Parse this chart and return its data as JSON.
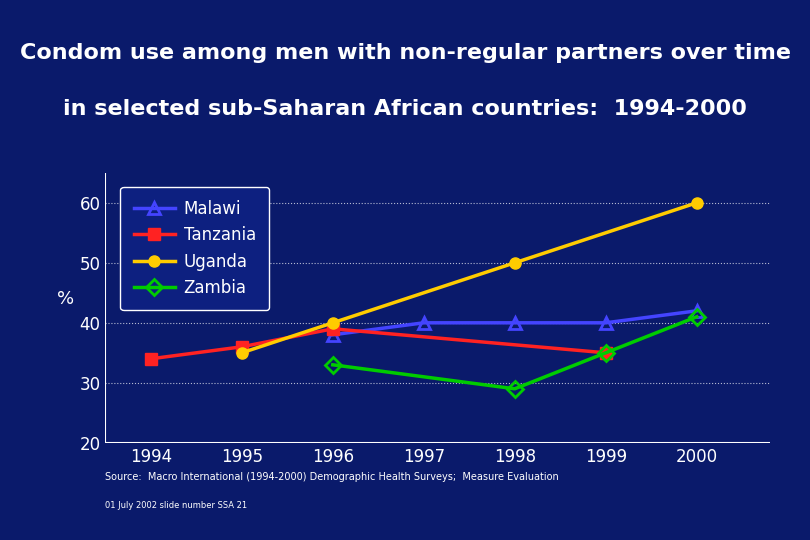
{
  "title_line1": "Condom use among men with non-regular partners over time",
  "title_line2": "in selected sub-Saharan African countries:  1994-2000",
  "ylabel": "%",
  "ylim": [
    20,
    65
  ],
  "yticks": [
    20,
    30,
    40,
    50,
    60
  ],
  "xlim": [
    1993.5,
    2000.8
  ],
  "xticks": [
    1994,
    1995,
    1996,
    1997,
    1998,
    1999,
    2000
  ],
  "background_color": "#0a1a6b",
  "plot_bg_color": "#0a1a6b",
  "grid_color": "#ffffff",
  "series": [
    {
      "name": "Malawi",
      "color": "#4444ff",
      "marker": "^",
      "marker_color": "#4444ff",
      "x": [
        1996,
        1997,
        1998,
        1999,
        2000
      ],
      "y": [
        38,
        40,
        40,
        40,
        42
      ]
    },
    {
      "name": "Tanzania",
      "color": "#ff2222",
      "marker": "s",
      "marker_color": "#ff2222",
      "x": [
        1994,
        1995,
        1996,
        1999
      ],
      "y": [
        34,
        36,
        39,
        35
      ]
    },
    {
      "name": "Uganda",
      "color": "#ffcc00",
      "marker": "o",
      "marker_color": "#ffcc00",
      "x": [
        1995,
        1996,
        1998,
        2000
      ],
      "y": [
        35,
        40,
        50,
        60
      ]
    },
    {
      "name": "Zambia",
      "color": "#00cc00",
      "marker": "D",
      "marker_color": "#00cc00",
      "x": [
        1996,
        1998,
        1999,
        2000
      ],
      "y": [
        33,
        29,
        35,
        41
      ]
    }
  ],
  "source_text": "Source:  Macro International (1994-2000) Demographic Health Surveys;  Measure Evaluation",
  "slide_text": "01 July 2002 slide number SSA 21",
  "title_fontsize": 16,
  "axis_label_fontsize": 13,
  "tick_fontsize": 12,
  "legend_fontsize": 12
}
